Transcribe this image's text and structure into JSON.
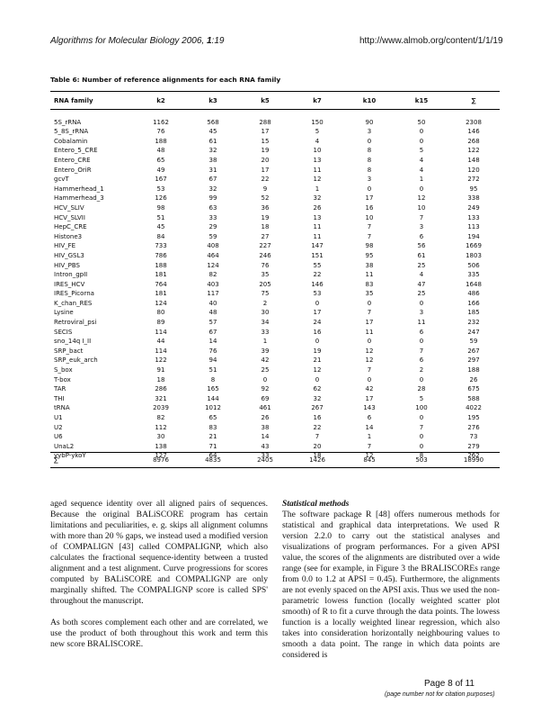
{
  "header": {
    "journal_prefix": "Algorithms for Molecular Biology",
    "journal_year": " 2006, ",
    "journal_volume": "1",
    "journal_pages": ":19",
    "url": "http://www.almob.org/content/1/1/19"
  },
  "table": {
    "caption": "Table 6: Number of reference alignments for each RNA family",
    "columns": [
      "RNA family",
      "k2",
      "k3",
      "k5",
      "k7",
      "k10",
      "k15",
      "∑"
    ],
    "rows": [
      [
        "5S_rRNA",
        "1162",
        "568",
        "288",
        "150",
        "90",
        "50",
        "2308"
      ],
      [
        "5_8S_rRNA",
        "76",
        "45",
        "17",
        "5",
        "3",
        "0",
        "146"
      ],
      [
        "Cobalamin",
        "188",
        "61",
        "15",
        "4",
        "0",
        "0",
        "268"
      ],
      [
        "Entero_5_CRE",
        "48",
        "32",
        "19",
        "10",
        "8",
        "5",
        "122"
      ],
      [
        "Entero_CRE",
        "65",
        "38",
        "20",
        "13",
        "8",
        "4",
        "148"
      ],
      [
        "Entero_OriR",
        "49",
        "31",
        "17",
        "11",
        "8",
        "4",
        "120"
      ],
      [
        "gcvT",
        "167",
        "67",
        "22",
        "12",
        "3",
        "1",
        "272"
      ],
      [
        "Hammerhead_1",
        "53",
        "32",
        "9",
        "1",
        "0",
        "0",
        "95"
      ],
      [
        "Hammerhead_3",
        "126",
        "99",
        "52",
        "32",
        "17",
        "12",
        "338"
      ],
      [
        "HCV_SLIV",
        "98",
        "63",
        "36",
        "26",
        "16",
        "10",
        "249"
      ],
      [
        "HCV_SLVII",
        "51",
        "33",
        "19",
        "13",
        "10",
        "7",
        "133"
      ],
      [
        "HepC_CRE",
        "45",
        "29",
        "18",
        "11",
        "7",
        "3",
        "113"
      ],
      [
        "Histone3",
        "84",
        "59",
        "27",
        "11",
        "7",
        "6",
        "194"
      ],
      [
        "HIV_FE",
        "733",
        "408",
        "227",
        "147",
        "98",
        "56",
        "1669"
      ],
      [
        "HIV_GSL3",
        "786",
        "464",
        "246",
        "151",
        "95",
        "61",
        "1803"
      ],
      [
        "HIV_PBS",
        "188",
        "124",
        "76",
        "55",
        "38",
        "25",
        "506"
      ],
      [
        "Intron_gpII",
        "181",
        "82",
        "35",
        "22",
        "11",
        "4",
        "335"
      ],
      [
        "IRES_HCV",
        "764",
        "403",
        "205",
        "146",
        "83",
        "47",
        "1648"
      ],
      [
        "IRES_Picorna",
        "181",
        "117",
        "75",
        "53",
        "35",
        "25",
        "486"
      ],
      [
        "K_chan_RES",
        "124",
        "40",
        "2",
        "0",
        "0",
        "0",
        "166"
      ],
      [
        "Lysine",
        "80",
        "48",
        "30",
        "17",
        "7",
        "3",
        "185"
      ],
      [
        "Retroviral_psi",
        "89",
        "57",
        "34",
        "24",
        "17",
        "11",
        "232"
      ],
      [
        "SECIS",
        "114",
        "67",
        "33",
        "16",
        "11",
        "6",
        "247"
      ],
      [
        "sno_14q I_II",
        "44",
        "14",
        "1",
        "0",
        "0",
        "0",
        "59"
      ],
      [
        "SRP_bact",
        "114",
        "76",
        "39",
        "19",
        "12",
        "7",
        "267"
      ],
      [
        "SRP_euk_arch",
        "122",
        "94",
        "42",
        "21",
        "12",
        "6",
        "297"
      ],
      [
        "S_box",
        "91",
        "51",
        "25",
        "12",
        "7",
        "2",
        "188"
      ],
      [
        "T-box",
        "18",
        "8",
        "0",
        "0",
        "0",
        "0",
        "26"
      ],
      [
        "TAR",
        "286",
        "165",
        "92",
        "62",
        "42",
        "28",
        "675"
      ],
      [
        "THI",
        "321",
        "144",
        "69",
        "32",
        "17",
        "5",
        "588"
      ],
      [
        "tRNA",
        "2039",
        "1012",
        "461",
        "267",
        "143",
        "100",
        "4022"
      ],
      [
        "U1",
        "82",
        "65",
        "26",
        "16",
        "6",
        "0",
        "195"
      ],
      [
        "U2",
        "112",
        "83",
        "38",
        "22",
        "14",
        "7",
        "276"
      ],
      [
        "U6",
        "30",
        "21",
        "14",
        "7",
        "1",
        "0",
        "73"
      ],
      [
        "UnaL2",
        "138",
        "71",
        "43",
        "20",
        "7",
        "0",
        "279"
      ],
      [
        "yybP-ykoY",
        "127",
        "64",
        "33",
        "18",
        "12",
        "8",
        "262"
      ]
    ],
    "sum_row": [
      "∑",
      "8976",
      "4835",
      "2405",
      "1426",
      "845",
      "503",
      "18990"
    ]
  },
  "body": {
    "left_p1": "aged sequence identity over all aligned pairs of sequences. Because the original BALiSCORE program has certain limitations and peculiarities, e. g. skips all alignment columns with more than 20 % gaps, we instead used a modified version of COMPALIGN [43] called COMPALIGNP, which also calculates the fractional sequence-identity between a trusted alignment and a test alignment. Curve progressions for scores computed by BALiSCORE and COMPALIGNP are only marginally shifted. The COMPALIGNP score is called SPS' throughout the manuscript.",
    "left_p2": "As both scores complement each other and are correlated, we use the product of both throughout this work and term this new score BRALISCORE.",
    "right_title": "Statistical methods",
    "right_p1": "The software package R [48] offers numerous methods for statistical and graphical data interpretations. We used R version 2.2.0 to carry out the statistical analyses and visualizations of program performances. For a given APSI value, the scores of the alignments are distributed over a wide range (see for example, in Figure 3 the BRALISCOREs range from 0.0 to 1.2 at APSI = 0.45). Furthermore, the alignments are not evenly spaced on the APSI axis. Thus we used the non-parametric lowess function (locally weighted scatter plot smooth) of R to fit a curve through the data points. The lowess function is a locally weighted linear regression, which also takes into consideration horizontally neighbouring values to smooth a data point. The range in which data points are considered is"
  },
  "footer": {
    "page": "Page 8 of 11",
    "note": "(page number not for citation purposes)"
  }
}
